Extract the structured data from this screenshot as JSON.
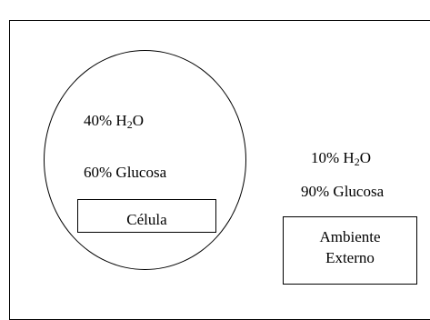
{
  "cell": {
    "water_value": "40% H",
    "water_sub": "2",
    "water_suffix": "O",
    "glucose": "60% Glucosa",
    "label": "Célula"
  },
  "environment": {
    "water_value": "10% H",
    "water_sub": "2",
    "water_suffix": "O",
    "glucose": "90% Glucosa",
    "label_line1": "Ambiente",
    "label_line2": "Externo"
  },
  "colors": {
    "stroke": "#000000",
    "background": "#ffffff"
  }
}
